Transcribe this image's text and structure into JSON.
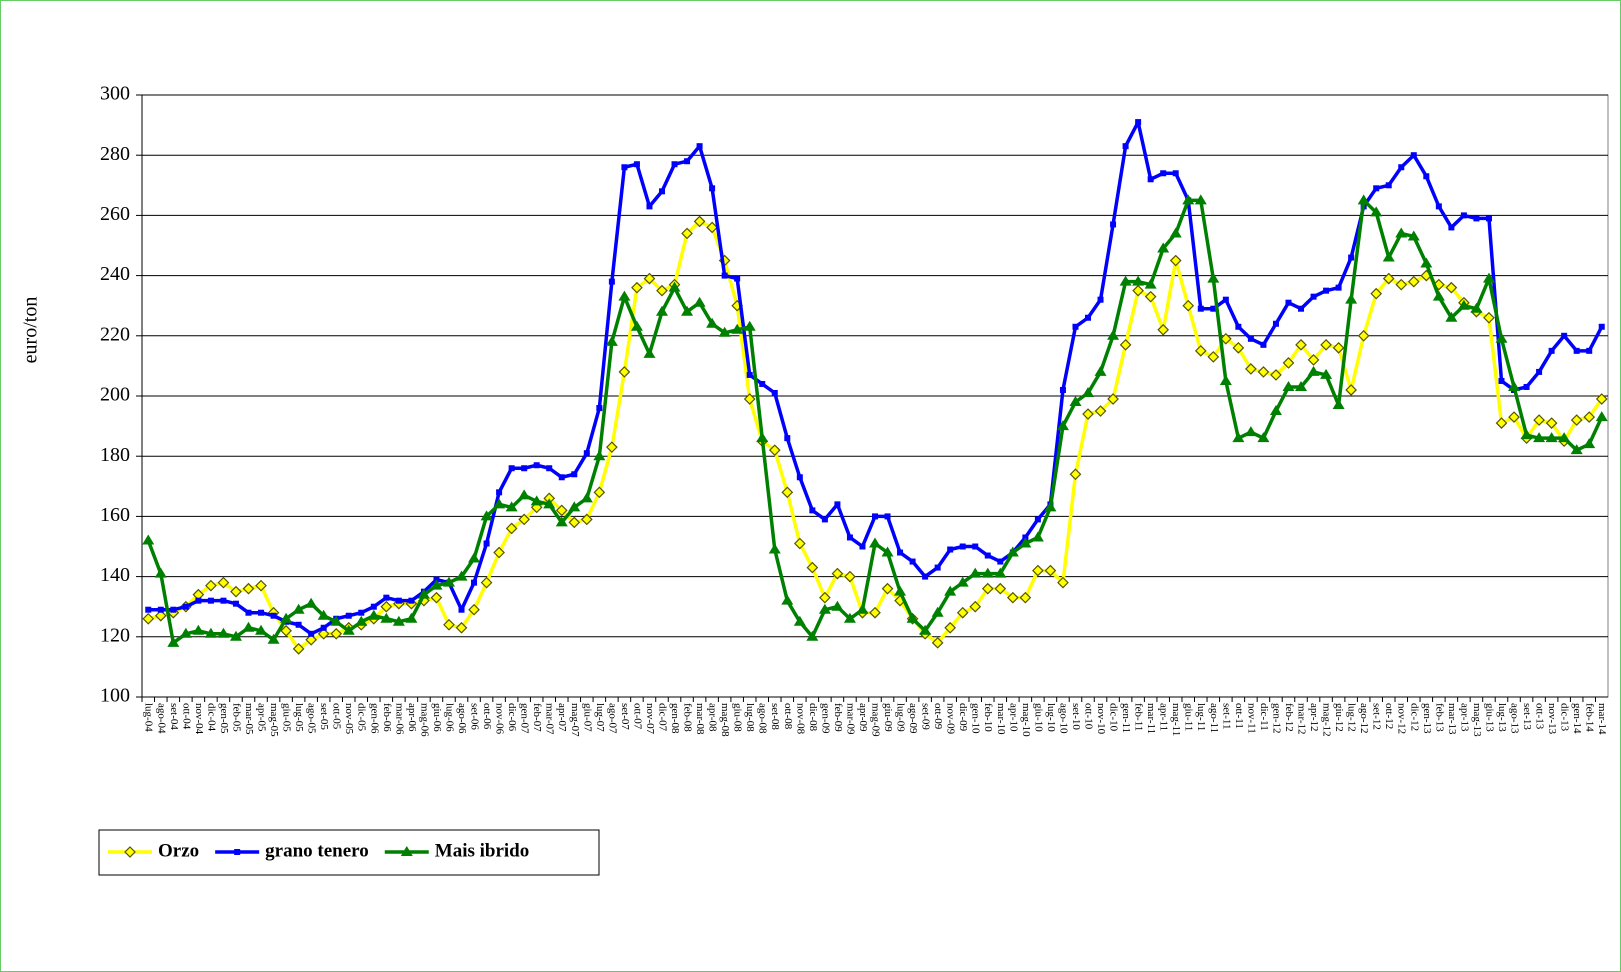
{
  "chart_data": {
    "type": "line",
    "y_label": "euro/ton",
    "categories": [
      "lug-04",
      "ago-04",
      "set-04",
      "ott-04",
      "nov-04",
      "dic-04",
      "gen-05",
      "feb-05",
      "mar-05",
      "apr-05",
      "mag-05",
      "giu-05",
      "lug-05",
      "ago-05",
      "set-05",
      "ott-05",
      "nov-05",
      "dic-05",
      "gen-06",
      "feb-06",
      "mar-06",
      "apr-06",
      "mag-06",
      "giu-06",
      "lug-06",
      "ago-06",
      "set-06",
      "ott-06",
      "nov-06",
      "dic-06",
      "gen-07",
      "feb-07",
      "mar-07",
      "apr-07",
      "mag-07",
      "giu-07",
      "lug-07",
      "ago-07",
      "set-07",
      "ott-07",
      "nov-07",
      "dic-07",
      "gen-08",
      "feb-08",
      "mar-08",
      "apr-08",
      "mag-08",
      "giu-08",
      "lug-08",
      "ago-08",
      "set-08",
      "ott-08",
      "nov-08",
      "dic-08",
      "gen-09",
      "feb-09",
      "mar-09",
      "apr-09",
      "mag-09",
      "giu-09",
      "lug-09",
      "ago-09",
      "set-09",
      "ott-09",
      "nov-09",
      "dic-09",
      "gen-10",
      "feb-10",
      "mar-10",
      "apr-10",
      "mag-10",
      "giu-10",
      "lug-10",
      "ago-10",
      "set-10",
      "ott-10",
      "nov-10",
      "dic-10",
      "gen-11",
      "feb-11",
      "mar-11",
      "apr-11",
      "mag-11",
      "giu-11",
      "lug-11",
      "ago-11",
      "set-11",
      "ott-11",
      "nov-11",
      "dic-11",
      "gen-12",
      "feb-12",
      "mar-12",
      "apr-12",
      "mag-12",
      "giu-12",
      "lug-12",
      "ago-12",
      "set-12",
      "ott-12",
      "nov-12",
      "dic-12",
      "gen-13",
      "feb-13",
      "mar-13",
      "apr-13",
      "mag-13",
      "giu-13",
      "lug-13",
      "ago-13",
      "set-13",
      "ott-13",
      "nov-13",
      "dic-13",
      "gen-14",
      "feb-14",
      "mar-14"
    ],
    "series": [
      {
        "name": "Orzo",
        "color": "#ffff00",
        "marker": "diamond",
        "values": [
          126,
          127,
          128,
          130,
          134,
          137,
          138,
          135,
          136,
          137,
          128,
          122,
          116,
          119,
          121,
          121,
          123,
          124,
          126,
          130,
          131,
          131,
          132,
          133,
          124,
          123,
          129,
          138,
          148,
          156,
          159,
          163,
          166,
          162,
          158,
          159,
          168,
          183,
          208,
          236,
          239,
          235,
          237,
          254,
          258,
          256,
          245,
          230,
          199,
          185,
          182,
          168,
          151,
          143,
          133,
          141,
          140,
          128,
          128,
          136,
          132,
          126,
          121,
          118,
          123,
          128,
          130,
          136,
          136,
          133,
          133,
          142,
          142,
          138,
          174,
          194,
          195,
          199,
          217,
          235,
          233,
          222,
          245,
          230,
          215,
          213,
          219,
          216,
          209,
          208,
          207,
          211,
          217,
          212,
          217,
          216,
          202,
          220,
          234,
          239,
          237,
          238,
          240,
          237,
          236,
          231,
          228,
          226,
          191,
          193,
          186,
          192,
          191,
          185,
          192,
          193,
          199
        ]
      },
      {
        "name": "grano tenero",
        "color": "#0000ff",
        "marker": "square",
        "values": [
          129,
          129,
          129,
          130,
          132,
          132,
          132,
          131,
          128,
          128,
          127,
          125,
          124,
          121,
          123,
          126,
          127,
          128,
          130,
          133,
          132,
          132,
          135,
          139,
          138,
          129,
          138,
          151,
          168,
          176,
          176,
          177,
          176,
          173,
          174,
          181,
          196,
          238,
          276,
          277,
          263,
          268,
          277,
          278,
          283,
          269,
          240,
          239,
          207,
          204,
          201,
          186,
          173,
          162,
          159,
          164,
          153,
          150,
          160,
          160,
          148,
          145,
          140,
          143,
          149,
          150,
          150,
          147,
          145,
          148,
          153,
          159,
          164,
          202,
          223,
          226,
          232,
          257,
          283,
          291,
          272,
          274,
          274,
          265,
          229,
          229,
          232,
          223,
          219,
          217,
          224,
          231,
          229,
          233,
          235,
          236,
          246,
          263,
          269,
          270,
          276,
          280,
          273,
          263,
          256,
          260,
          259,
          259,
          205,
          202,
          203,
          208,
          215,
          220,
          215,
          215,
          223
        ]
      },
      {
        "name": "Mais ibrido",
        "color": "#008000",
        "marker": "triangle",
        "values": [
          152,
          141,
          118,
          121,
          122,
          121,
          121,
          120,
          123,
          122,
          119,
          126,
          129,
          131,
          127,
          125,
          122,
          125,
          127,
          126,
          125,
          126,
          134,
          137,
          138,
          140,
          146,
          160,
          164,
          163,
          167,
          165,
          164,
          158,
          163,
          166,
          180,
          218,
          233,
          223,
          214,
          228,
          236,
          228,
          231,
          224,
          221,
          222,
          223,
          186,
          149,
          132,
          125,
          120,
          129,
          130,
          126,
          129,
          151,
          148,
          135,
          126,
          122,
          128,
          135,
          138,
          141,
          141,
          141,
          148,
          151,
          153,
          163,
          190,
          198,
          201,
          208,
          220,
          238,
          238,
          237,
          249,
          254,
          265,
          265,
          239,
          205,
          186,
          188,
          186,
          195,
          203,
          203,
          208,
          207,
          197,
          232,
          265,
          261,
          246,
          254,
          253,
          244,
          233,
          226,
          230,
          229,
          239,
          219,
          203,
          187,
          186,
          186,
          186,
          182,
          184,
          193
        ]
      }
    ],
    "ylim": [
      100,
      300
    ],
    "yticks": [
      100,
      120,
      140,
      160,
      180,
      200,
      220,
      240,
      260,
      280,
      300
    ],
    "grid": true
  }
}
